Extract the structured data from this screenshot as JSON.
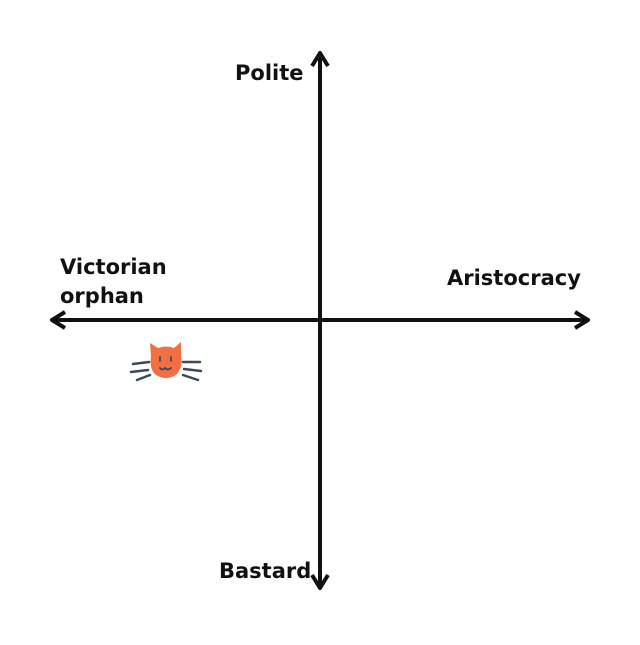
{
  "diagram": {
    "type": "quadrant-chart",
    "axes": {
      "top": "Polite",
      "bottom": "Bastard",
      "left": [
        "Victorian",
        "orphan"
      ],
      "right": "Aristocracy"
    }
  },
  "marker": {
    "icon": "cat-face-icon",
    "color": "#f26f43",
    "whisker_color": "#3b4a5a",
    "axis_color": "#111111"
  }
}
